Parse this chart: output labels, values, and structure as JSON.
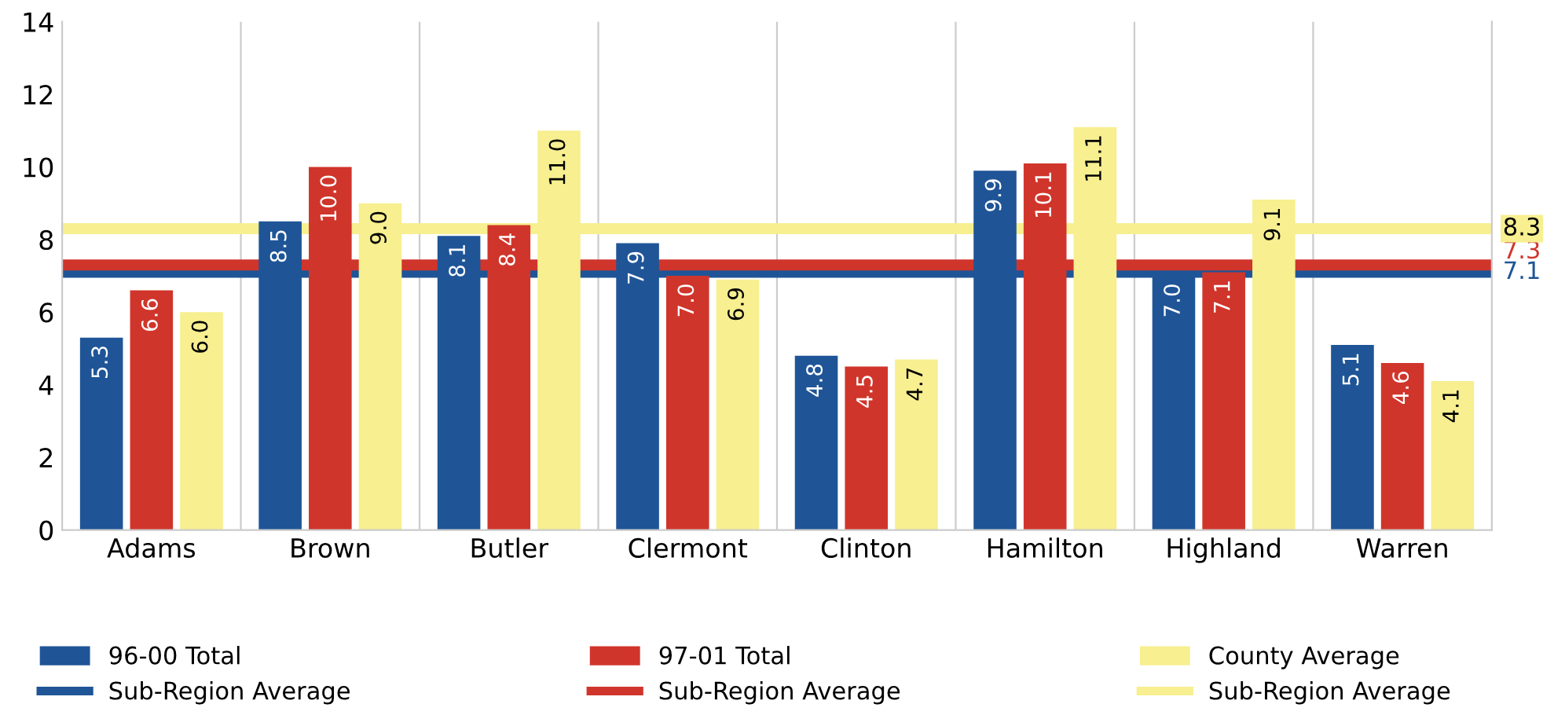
{
  "chart_data": {
    "type": "bar",
    "categories": [
      "Adams",
      "Brown",
      "Butler",
      "Clermont",
      "Clinton",
      "Hamilton",
      "Highland",
      "Warren"
    ],
    "series": [
      {
        "name": "96-00 Total",
        "color": "#1f5597",
        "values": [
          5.3,
          8.5,
          8.1,
          7.9,
          4.8,
          9.9,
          7.0,
          5.1
        ],
        "value_labels": [
          "5.3",
          "8.5",
          "8.1",
          "7.9",
          "4.8",
          "9.9",
          "7.0",
          "5.1"
        ]
      },
      {
        "name": "97-01 Total",
        "color": "#d0352b",
        "values": [
          6.6,
          10.0,
          8.4,
          7.0,
          4.5,
          10.1,
          7.1,
          4.6
        ],
        "value_labels": [
          "6.6",
          "10.0",
          "8.4",
          "7.0",
          "4.5",
          "10.1",
          "7.1",
          "4.6"
        ]
      },
      {
        "name": "County Average",
        "color": "#f7ef90",
        "values": [
          6.0,
          9.0,
          11.0,
          6.9,
          4.7,
          11.1,
          9.1,
          4.1
        ],
        "value_labels": [
          "6.0",
          "9.0",
          "11.0",
          "6.9",
          "4.7",
          "11.1",
          "9.1",
          "4.1"
        ]
      }
    ],
    "annotations": [
      "7.1",
      "7.3",
      "8.3"
    ],
    "ref_lines": [
      {
        "axis": "y",
        "value": 7.1,
        "label": "Sub-Region Average",
        "color": "#1f5597"
      },
      {
        "axis": "y",
        "value": 7.3,
        "label": "Sub-Region Average",
        "color": "#d0352b"
      },
      {
        "axis": "y",
        "value": 8.3,
        "label": "Sub-Region Average",
        "color": "#f7ef90"
      }
    ],
    "ylim": [
      0,
      14
    ],
    "yticks": [
      0,
      2,
      4,
      6,
      8,
      10,
      12,
      14
    ],
    "grid": "x",
    "legend": "bottom"
  }
}
